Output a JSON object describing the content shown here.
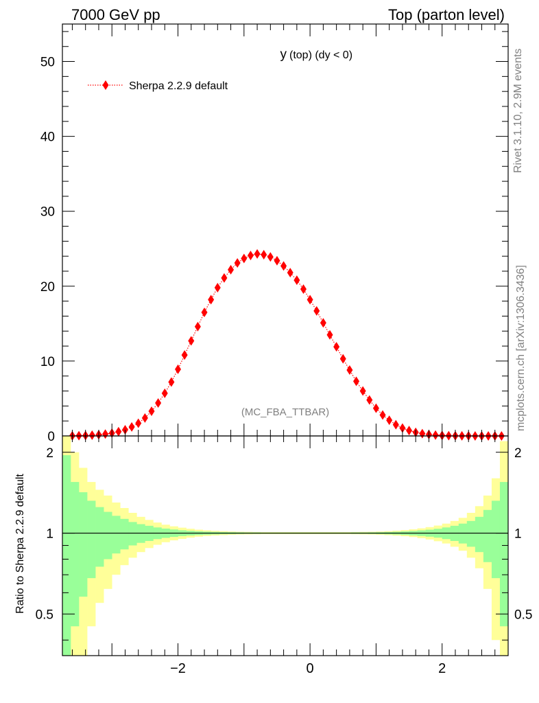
{
  "header": {
    "left": "7000 GeV pp",
    "right": "Top (parton level)"
  },
  "side": {
    "rivet": "Rivet 3.1.10,  2.9M events",
    "mcplots": "mcplots.cern.ch [arXiv:1306.3436]"
  },
  "chart_data": {
    "type": "line",
    "title_main": "y",
    "title_sub": "(top) (dy < 0)",
    "watermark": "(MC_FBA_TTBAR)",
    "legend": {
      "label": "Sherpa 2.2.9 default",
      "placement": "top-left",
      "color": "#ff0000"
    },
    "xlim": [
      -3.75,
      3.0
    ],
    "ylim_main": [
      0,
      55
    ],
    "yticks_main": [
      "0",
      "10",
      "20",
      "30",
      "40",
      "50"
    ],
    "xticks": [
      "−2",
      "0",
      "2"
    ],
    "ratio_ylabel": "Ratio to Sherpa 2.2.9 default",
    "ratio_ylim": [
      0.35,
      2.3
    ],
    "ratio_yticks": [
      "0.5",
      "1",
      "2"
    ],
    "series": [
      {
        "name": "Sherpa 2.2.9 default",
        "color": "#ff0000",
        "x": [
          -3.6,
          -3.5,
          -3.4,
          -3.3,
          -3.2,
          -3.1,
          -3.0,
          -2.9,
          -2.8,
          -2.7,
          -2.6,
          -2.5,
          -2.4,
          -2.3,
          -2.2,
          -2.1,
          -2.0,
          -1.9,
          -1.8,
          -1.7,
          -1.6,
          -1.5,
          -1.4,
          -1.3,
          -1.2,
          -1.1,
          -1.0,
          -0.9,
          -0.8,
          -0.7,
          -0.6,
          -0.5,
          -0.4,
          -0.3,
          -0.2,
          -0.1,
          0.0,
          0.1,
          0.2,
          0.3,
          0.4,
          0.5,
          0.6,
          0.7,
          0.8,
          0.9,
          1.0,
          1.1,
          1.2,
          1.3,
          1.4,
          1.5,
          1.6,
          1.7,
          1.8,
          1.9,
          2.0,
          2.1,
          2.2,
          2.3,
          2.4,
          2.5,
          2.6,
          2.7,
          2.8,
          2.9
        ],
        "y": [
          0.02,
          0.04,
          0.06,
          0.1,
          0.16,
          0.25,
          0.38,
          0.57,
          0.83,
          1.2,
          1.7,
          2.4,
          3.3,
          4.4,
          5.7,
          7.2,
          8.9,
          10.8,
          12.7,
          14.6,
          16.5,
          18.2,
          19.8,
          21.1,
          22.2,
          23.1,
          23.7,
          24.1,
          24.3,
          24.2,
          23.9,
          23.4,
          22.7,
          21.8,
          20.8,
          19.6,
          18.2,
          16.7,
          15.1,
          13.5,
          11.9,
          10.3,
          8.8,
          7.3,
          6.0,
          4.8,
          3.7,
          2.8,
          2.1,
          1.5,
          1.05,
          0.72,
          0.48,
          0.31,
          0.19,
          0.12,
          0.07,
          0.04,
          0.02,
          0.01,
          0.01,
          0.0,
          0.0,
          0.0,
          0.0,
          0.0
        ]
      }
    ],
    "ratio_bands": {
      "edges": [
        -3.75,
        -3.625,
        -3.5,
        -3.375,
        -3.25,
        -3.125,
        -3.0,
        -2.875,
        -2.75,
        -2.625,
        -2.5,
        -2.375,
        -2.25,
        -2.125,
        -2.0,
        -1.875,
        -1.75,
        -1.625,
        -1.5,
        -1.375,
        -1.25,
        -1.125,
        -1.0,
        -0.875,
        -0.75,
        -0.625,
        -0.5,
        -0.375,
        -0.25,
        -0.125,
        0.0,
        0.125,
        0.25,
        0.375,
        0.5,
        0.625,
        0.75,
        0.875,
        1.0,
        1.125,
        1.25,
        1.375,
        1.5,
        1.625,
        1.75,
        1.875,
        2.0,
        2.125,
        2.25,
        2.375,
        2.5,
        2.625,
        2.75,
        2.875,
        3.0
      ],
      "green": {
        "color": "#99ff99",
        "halfwidth": [
          0.95,
          0.55,
          0.42,
          0.32,
          0.25,
          0.2,
          0.16,
          0.13,
          0.1,
          0.08,
          0.065,
          0.05,
          0.04,
          0.032,
          0.025,
          0.02,
          0.016,
          0.013,
          0.011,
          0.009,
          0.008,
          0.007,
          0.006,
          0.006,
          0.005,
          0.005,
          0.005,
          0.005,
          0.005,
          0.005,
          0.005,
          0.005,
          0.005,
          0.005,
          0.005,
          0.006,
          0.006,
          0.007,
          0.008,
          0.01,
          0.012,
          0.015,
          0.019,
          0.024,
          0.03,
          0.038,
          0.05,
          0.065,
          0.085,
          0.11,
          0.15,
          0.22,
          0.32,
          0.55
        ]
      },
      "yellow": {
        "color": "#ffff99",
        "halfwidth": [
          1.4,
          1.0,
          0.75,
          0.55,
          0.45,
          0.38,
          0.3,
          0.24,
          0.19,
          0.15,
          0.12,
          0.095,
          0.075,
          0.06,
          0.048,
          0.038,
          0.03,
          0.024,
          0.02,
          0.017,
          0.014,
          0.012,
          0.011,
          0.01,
          0.009,
          0.009,
          0.009,
          0.009,
          0.009,
          0.009,
          0.009,
          0.009,
          0.009,
          0.009,
          0.009,
          0.01,
          0.011,
          0.012,
          0.014,
          0.017,
          0.021,
          0.026,
          0.033,
          0.042,
          0.053,
          0.067,
          0.085,
          0.11,
          0.14,
          0.19,
          0.26,
          0.38,
          0.6,
          1.2
        ]
      },
      "line_value": 1.0
    }
  }
}
